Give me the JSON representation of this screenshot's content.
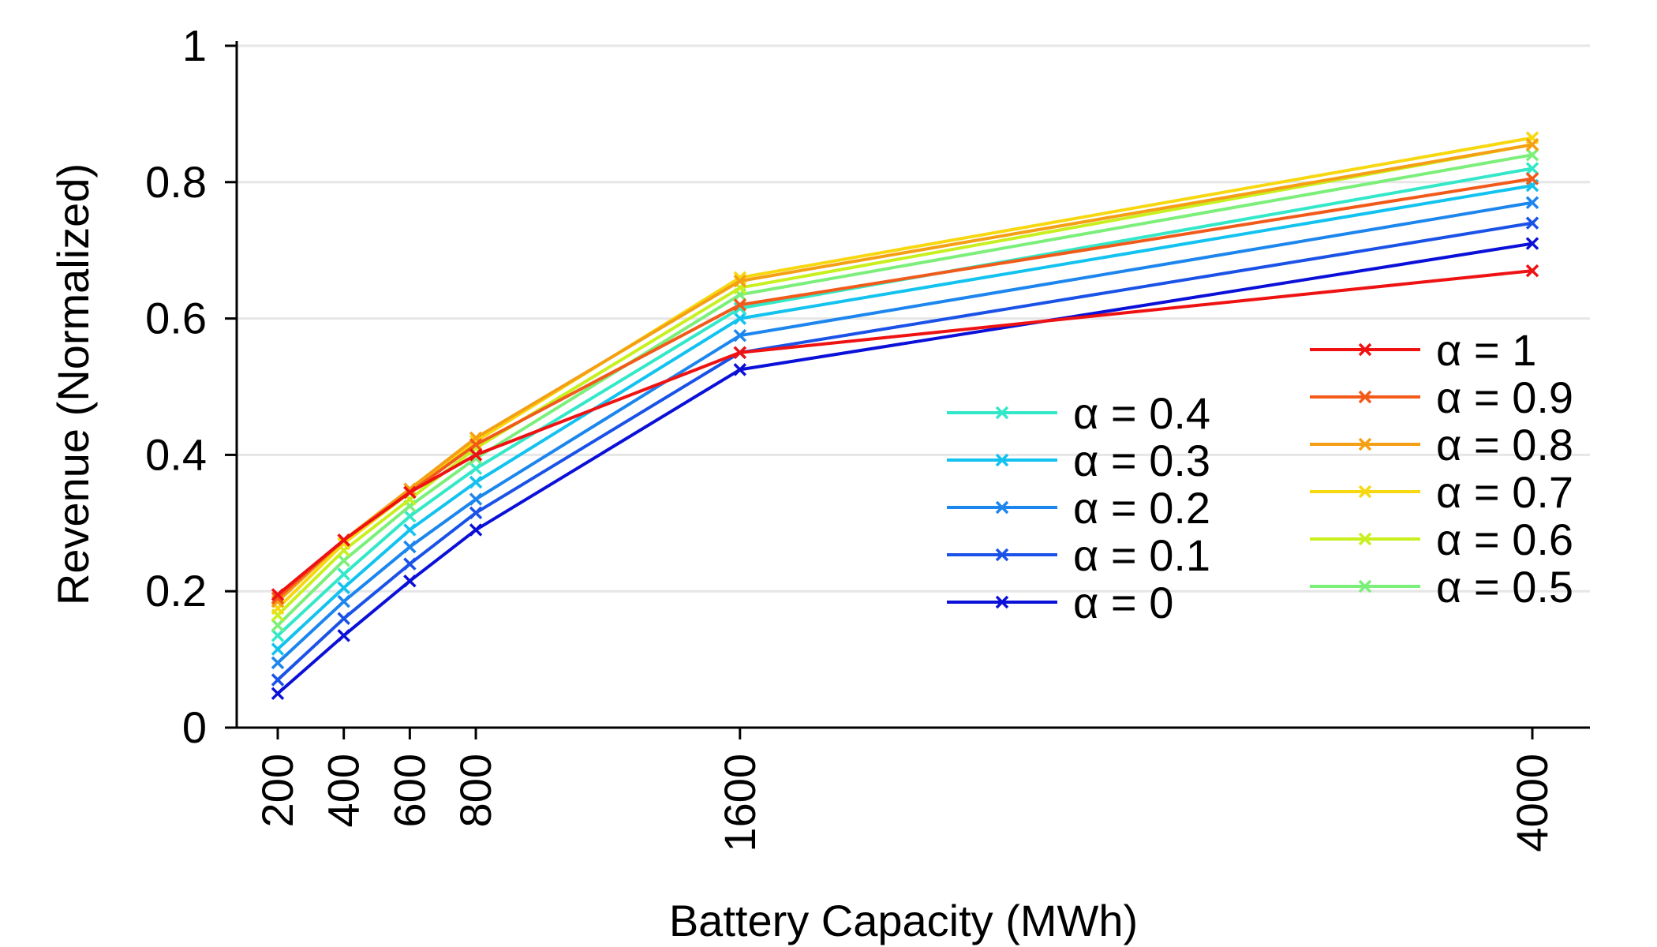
{
  "chart_data": {
    "type": "line",
    "xlabel": "Battery Capacity (MWh)",
    "ylabel": "Revenue (Normalized)",
    "x": [
      200,
      400,
      600,
      800,
      1600,
      4000
    ],
    "x_tick_labels": [
      "200",
      "400",
      "600",
      "800",
      "1600",
      "4000"
    ],
    "ylim": [
      0,
      1
    ],
    "y_ticks": [
      0,
      0.2,
      0.4,
      0.6,
      0.8,
      1
    ],
    "y_tick_labels": [
      "0",
      "0.2",
      "0.4",
      "0.6",
      "0.8",
      "1"
    ],
    "grid": "horizontal",
    "marker": "x",
    "legend": {
      "placement": "bottom-right",
      "columns": 2
    },
    "series": [
      {
        "name": "α = 0",
        "color": "#0a10d8",
        "values": [
          0.05,
          0.135,
          0.215,
          0.29,
          0.525,
          0.71
        ]
      },
      {
        "name": "α = 0.1",
        "color": "#1a52e8",
        "values": [
          0.07,
          0.16,
          0.24,
          0.315,
          0.55,
          0.74
        ]
      },
      {
        "name": "α = 0.2",
        "color": "#1c86ee",
        "values": [
          0.095,
          0.185,
          0.265,
          0.335,
          0.575,
          0.77
        ]
      },
      {
        "name": "α = 0.3",
        "color": "#12c2ef",
        "values": [
          0.115,
          0.205,
          0.29,
          0.36,
          0.6,
          0.795
        ]
      },
      {
        "name": "α = 0.4",
        "color": "#33e8c8",
        "values": [
          0.135,
          0.225,
          0.31,
          0.38,
          0.615,
          0.82
        ]
      },
      {
        "name": "α = 0.5",
        "color": "#7bef7a",
        "values": [
          0.15,
          0.245,
          0.325,
          0.395,
          0.635,
          0.84
        ]
      },
      {
        "name": "α = 0.6",
        "color": "#c8f01e",
        "values": [
          0.165,
          0.26,
          0.335,
          0.41,
          0.645,
          0.855
        ]
      },
      {
        "name": "α = 0.7",
        "color": "#f7d810",
        "values": [
          0.175,
          0.27,
          0.345,
          0.42,
          0.66,
          0.865
        ]
      },
      {
        "name": "α = 0.8",
        "color": "#f5a014",
        "values": [
          0.185,
          0.275,
          0.35,
          0.425,
          0.655,
          0.855
        ]
      },
      {
        "name": "α = 0.9",
        "color": "#f25a1a",
        "values": [
          0.19,
          0.275,
          0.345,
          0.415,
          0.62,
          0.805
        ]
      },
      {
        "name": "α = 1",
        "color": "#ee1212",
        "values": [
          0.195,
          0.275,
          0.345,
          0.4,
          0.55,
          0.67
        ]
      }
    ]
  }
}
